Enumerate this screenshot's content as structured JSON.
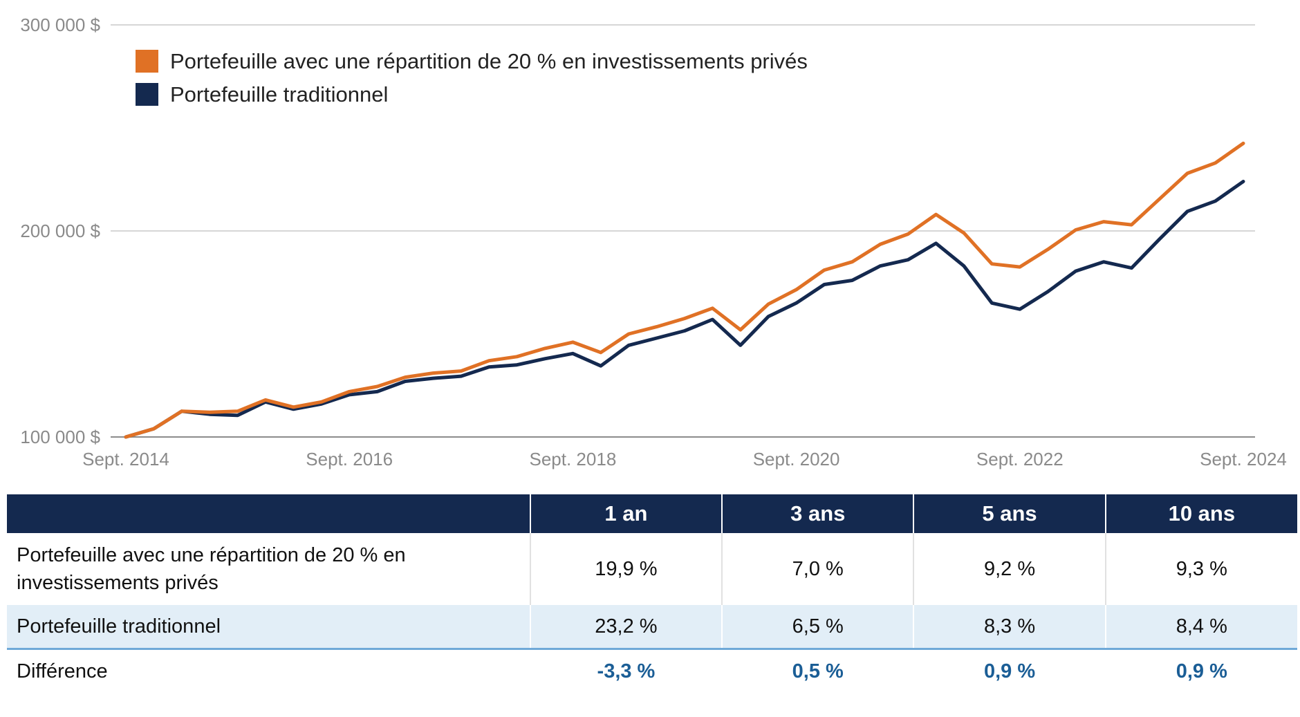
{
  "chart_data": {
    "type": "line",
    "yticks": [
      "100 000 $",
      "200 000 $",
      "300 000 $"
    ],
    "ylim": [
      100000,
      300000
    ],
    "xticks": [
      "Sept. 2014",
      "Sept. 2016",
      "Sept. 2018",
      "Sept. 2020",
      "Sept. 2022",
      "Sept. 2024"
    ],
    "x": [
      2014.75,
      2015.0,
      2015.25,
      2015.5,
      2015.75,
      2016.0,
      2016.25,
      2016.5,
      2016.75,
      2017.0,
      2017.25,
      2017.5,
      2017.75,
      2018.0,
      2018.25,
      2018.5,
      2018.75,
      2019.0,
      2019.25,
      2019.5,
      2019.75,
      2020.0,
      2020.25,
      2020.5,
      2020.75,
      2021.0,
      2021.25,
      2021.5,
      2021.75,
      2022.0,
      2022.25,
      2022.5,
      2022.75,
      2023.0,
      2023.25,
      2023.5,
      2023.75,
      2024.0,
      2024.25,
      2024.5,
      2024.75
    ],
    "grid": true,
    "legend_position": "top-left",
    "series": [
      {
        "name": "Portefeuille avec une répartition de 20 % en investissements privés",
        "color": "#e07125",
        "values": [
          100000,
          104000,
          112500,
          112000,
          112500,
          118000,
          114500,
          117000,
          122000,
          124500,
          129000,
          131000,
          132000,
          137000,
          139000,
          143000,
          146000,
          141000,
          150000,
          153500,
          157500,
          162500,
          152000,
          164500,
          171500,
          181000,
          185000,
          193500,
          198500,
          208000,
          199000,
          184000,
          182500,
          191000,
          200500,
          204500,
          203000,
          215500,
          228000,
          233000,
          242500
        ]
      },
      {
        "name": "Portefeuille traditionnel",
        "color": "#14294f",
        "values": [
          100000,
          104000,
          112500,
          111000,
          110500,
          117000,
          113500,
          116000,
          120500,
          122000,
          127000,
          128500,
          129500,
          134000,
          135000,
          138000,
          140500,
          134500,
          144500,
          148000,
          151500,
          157000,
          144500,
          158500,
          165000,
          174000,
          176000,
          183000,
          186000,
          194000,
          183000,
          165000,
          162000,
          170500,
          180500,
          185000,
          182000,
          196000,
          209500,
          214500,
          224000
        ]
      }
    ]
  },
  "table": {
    "headers": [
      "",
      "1 an",
      "3 ans",
      "5 ans",
      "10 ans"
    ],
    "rows": [
      {
        "label": "Portefeuille avec une répartition de 20 % en investissements privés",
        "values": [
          "19,9 %",
          "7,0 %",
          "9,2 %",
          "9,3 %"
        ]
      },
      {
        "label": "Portefeuille traditionnel",
        "values": [
          "23,2 %",
          "6,5 %",
          "8,3 %",
          "8,4 %"
        ]
      },
      {
        "label": "Différence",
        "values": [
          "-3,3 %",
          "0,5 %",
          "0,9 %",
          "0,9 %"
        ]
      }
    ]
  }
}
